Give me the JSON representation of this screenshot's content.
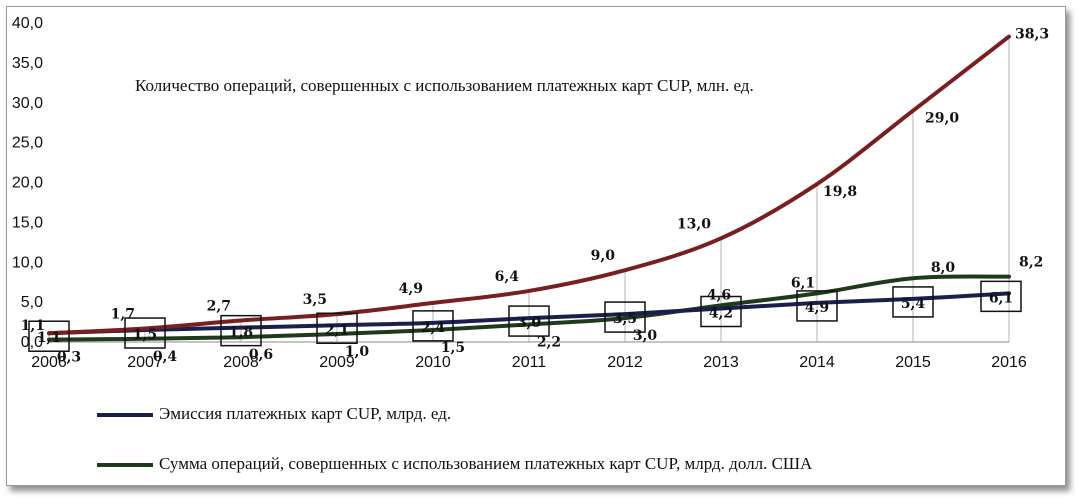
{
  "chart_data": {
    "type": "line",
    "title": "Количество операций, совершенных с использованием платежных карт CUP, млн. ед.",
    "x": [
      "2006",
      "2007",
      "2008",
      "2009",
      "2010",
      "2011",
      "2012",
      "2013",
      "2014",
      "2015",
      "2016"
    ],
    "y_ticks": [
      "0,0",
      "5,0",
      "10,0",
      "15,0",
      "20,0",
      "25,0",
      "30,0",
      "35,0",
      "40,0"
    ],
    "ylim": [
      0,
      40
    ],
    "grid": "vertical drop lines at each year",
    "legend_position": "bottom-left",
    "series": [
      {
        "key": "operations",
        "color": "#7a1f1f",
        "values": [
          1.1,
          1.7,
          2.7,
          3.5,
          4.9,
          6.4,
          9.0,
          13.0,
          19.8,
          29.0,
          38.3
        ],
        "labels": [
          "1,1",
          "1,7",
          "2,7",
          "3,5",
          "4,9",
          "6,4",
          "9,0",
          "13,0",
          "19,8",
          "29,0",
          "38,3"
        ]
      },
      {
        "name": "Эмиссия платежных карт CUP, млрд. ед.",
        "key": "emission",
        "color": "#1b1f4e",
        "values": [
          1.1,
          1.5,
          1.8,
          2.1,
          2.4,
          3.0,
          3.5,
          4.2,
          4.9,
          5.4,
          6.1
        ],
        "labels": [
          "1,1",
          "1,5",
          "1,8",
          "2,1",
          "2,4",
          "3,0",
          "3,5",
          "4,2",
          "4,9",
          "5,4",
          "6,1"
        ]
      },
      {
        "name": "Сумма операций, совершенных с использованием платежных карт CUP, млрд. долл. США",
        "key": "amount",
        "color": "#1f3a1b",
        "values": [
          0.3,
          0.4,
          0.6,
          1.0,
          1.5,
          2.2,
          3.0,
          4.6,
          6.1,
          8.0,
          8.2
        ],
        "labels": [
          "0,3",
          "0,4",
          "0,6",
          "1,0",
          "1,5",
          "2,2",
          "3,0",
          "4,6",
          "6,1",
          "8,0",
          "8,2"
        ]
      }
    ]
  }
}
